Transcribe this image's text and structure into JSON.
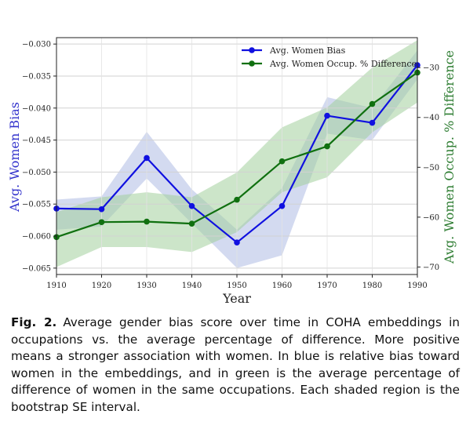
{
  "chart_data": {
    "type": "line",
    "xlabel": "Year",
    "x": [
      1910,
      1920,
      1930,
      1940,
      1950,
      1960,
      1970,
      1980,
      1990
    ],
    "xlim": [
      1910,
      1990
    ],
    "x_ticks": [
      "1910",
      "1920",
      "1930",
      "1940",
      "1950",
      "1960",
      "1970",
      "1980",
      "1990"
    ],
    "grid": true,
    "legend_position": "top-right",
    "y_left": {
      "label": "Avg. Women Bias",
      "lim": [
        -0.066,
        -0.029
      ],
      "ticks": [
        -0.03,
        -0.035,
        -0.04,
        -0.045,
        -0.05,
        -0.055,
        -0.06,
        -0.065
      ],
      "tick_labels": [
        "−0.030",
        "−0.035",
        "−0.040",
        "−0.045",
        "−0.050",
        "−0.055",
        "−0.060",
        "−0.065"
      ],
      "color": "#3333cc"
    },
    "y_right": {
      "label": "Avg. Women Occup. % Difference",
      "lim": [
        -71.5,
        -24.0
      ],
      "ticks": [
        -30,
        -40,
        -50,
        -60,
        -70
      ],
      "tick_labels": [
        "−30",
        "−40",
        "−50",
        "−60",
        "−70"
      ],
      "color": "#2e7d32"
    },
    "series": [
      {
        "name": "Avg. Women Bias",
        "axis": "left",
        "color": "#1010e0",
        "band_color": "#aebbe3",
        "values": [
          -0.0557,
          -0.0558,
          -0.0478,
          -0.0553,
          -0.061,
          -0.0553,
          -0.0412,
          -0.0423,
          -0.0333
        ],
        "lower": [
          -0.059,
          -0.0585,
          -0.051,
          -0.058,
          -0.065,
          -0.063,
          -0.044,
          -0.045,
          -0.0355
        ],
        "upper": [
          -0.0543,
          -0.0538,
          -0.0437,
          -0.0527,
          -0.059,
          -0.0525,
          -0.0383,
          -0.04,
          -0.031
        ]
      },
      {
        "name": "Avg. Women Occup. % Difference",
        "axis": "right",
        "color": "#107010",
        "band_color": "#a3cf9c",
        "values": [
          -64.0,
          -61.0,
          -60.9,
          -61.3,
          -56.5,
          -48.8,
          -45.8,
          -37.3,
          -31.0
        ],
        "lower": [
          -70.0,
          -66.0,
          -66.0,
          -67.0,
          -63.0,
          -55.0,
          -52.0,
          -43.0,
          -37.0
        ],
        "upper": [
          -59.0,
          -56.0,
          -55.0,
          -56.0,
          -51.0,
          -42.0,
          -38.0,
          -30.0,
          -24.5
        ]
      }
    ]
  },
  "caption": {
    "label": "Fig. 2.",
    "text": "Average gender bias score over time in COHA embeddings in occupations vs. the average percentage of difference. More positive means a stronger association with women. In blue is relative bias toward women in the embeddings, and in green is the average percentage of difference of women in the same occupations. Each shaded region is the bootstrap SE interval."
  }
}
